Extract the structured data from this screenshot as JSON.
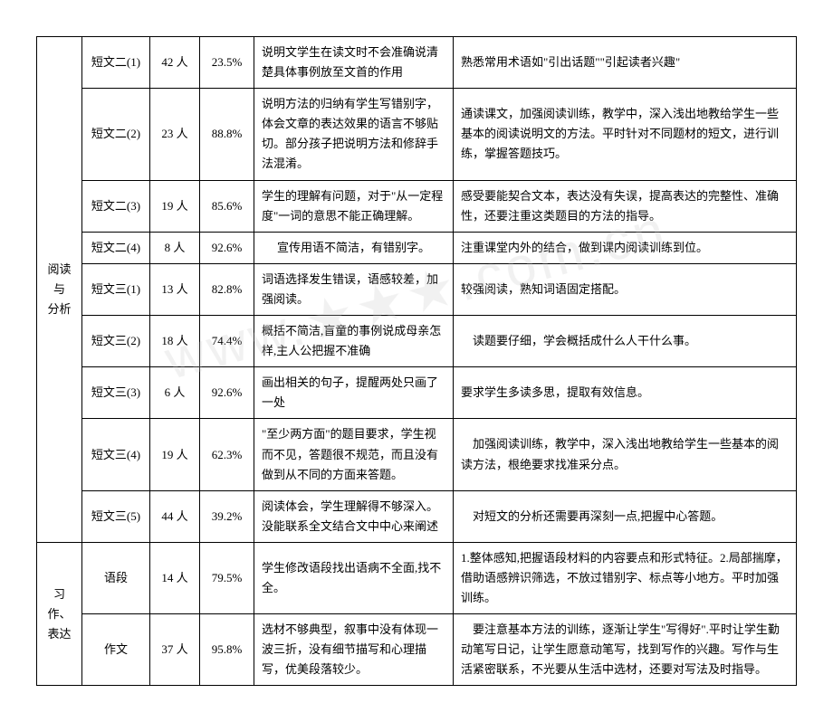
{
  "categories": {
    "reading": "阅读\n与\n分析",
    "writing": "习作、\n表达"
  },
  "rows": [
    {
      "item": "短文二(1)",
      "count": "42 人",
      "pct": "23.5%",
      "desc": "说明文学生在读文时不会准确说清楚具体事例放至文首的作用",
      "note": "熟悉常用术语如\"引出话题\"\"引起读者兴趣\""
    },
    {
      "item": "短文二(2)",
      "count": "23 人",
      "pct": "88.8%",
      "desc": "说明方法的归纳有学生写错别字，体会文章的表达效果的语言不够贴切。部分孩子把说明方法和修辞手法混淆。",
      "note": "通读课文，加强阅读训练，教学中，深入浅出地教给学生一些基本的阅读说明文的方法。平时针对不同题材的短文，进行训练，掌握答题技巧。"
    },
    {
      "item": "短文二(3)",
      "count": "19 人",
      "pct": "85.6%",
      "desc": "学生的理解有问题，对于\"从一定程度\"一词的意思不能正确理解。",
      "note": "感受要能契合文本，表达没有失误，提高表达的完整性、准确性，还要注重这类题目的方法的指导。"
    },
    {
      "item": "短文二(4)",
      "count": "8 人",
      "pct": "92.6%",
      "desc": "宣传用语不简洁，有错别字。",
      "desc_center": true,
      "note": "注重课堂内外的结合，做到课内阅读训练到位。"
    },
    {
      "item": "短文三(1)",
      "count": "13 人",
      "pct": "82.8%",
      "desc": "词语选择发生错误，语感较差，加强阅读。",
      "note": "较强阅读，熟知词语固定搭配。"
    },
    {
      "item": "短文三(2)",
      "count": "18 人",
      "pct": "74.4%",
      "desc": "概括不简洁,盲童的事例说成母亲怎样,主人公把握不准确",
      "note": "读题要仔细，学会概括成什么人干什么事。",
      "note_indent": true
    },
    {
      "item": "短文三(3)",
      "count": "6 人",
      "pct": "92.6%",
      "desc": "画出相关的句子，提醒两处只画了一处",
      "note": "要求学生多读多思，提取有效信息。"
    },
    {
      "item": "短文三(4)",
      "count": "19 人",
      "pct": "62.3%",
      "desc": "\"至少两方面\"的题目要求，学生视而不见，答题很不规范，而且没有做到从不同的方面来答题。",
      "note": "加强阅读训练，教学中，深入浅出地教给学生一些基本的阅读方法，根绝要求找准采分点。",
      "note_indent": true
    },
    {
      "item": "短文三(5)",
      "count": "44 人",
      "pct": "39.2%",
      "desc": "阅读体会，学生理解得不够深入。没能联系全文结合文中中心来阐述",
      "note": "对短文的分析还需要再深刻一点,把握中心答题。",
      "note_indent": true
    }
  ],
  "writing_rows": [
    {
      "item": "语段",
      "count": "14 人",
      "pct": "79.5%",
      "desc": "学生修改语段找出语病不全面,找不全。",
      "note": "1.整体感知,把握语段材料的内容要点和形式特征。2.局部揣摩，借助语感辨识筛选，不放过错别字、标点等小地方。平时加强训练。"
    },
    {
      "item": "作文",
      "count": "37 人",
      "pct": "95.8%",
      "desc": "选材不够典型，叙事中没有体现一波三折，没有细节描写和心理描写，优美段落较少。",
      "note": "要注意基本方法的训练，逐渐让学生\"写得好\".平时让学生勤动笔写日记，让学生愿意动笔写，找到写作的兴趣。写作与生活紧密联系，不光要从生活中选材，还要对写法及时指导。",
      "note_indent": true
    }
  ]
}
